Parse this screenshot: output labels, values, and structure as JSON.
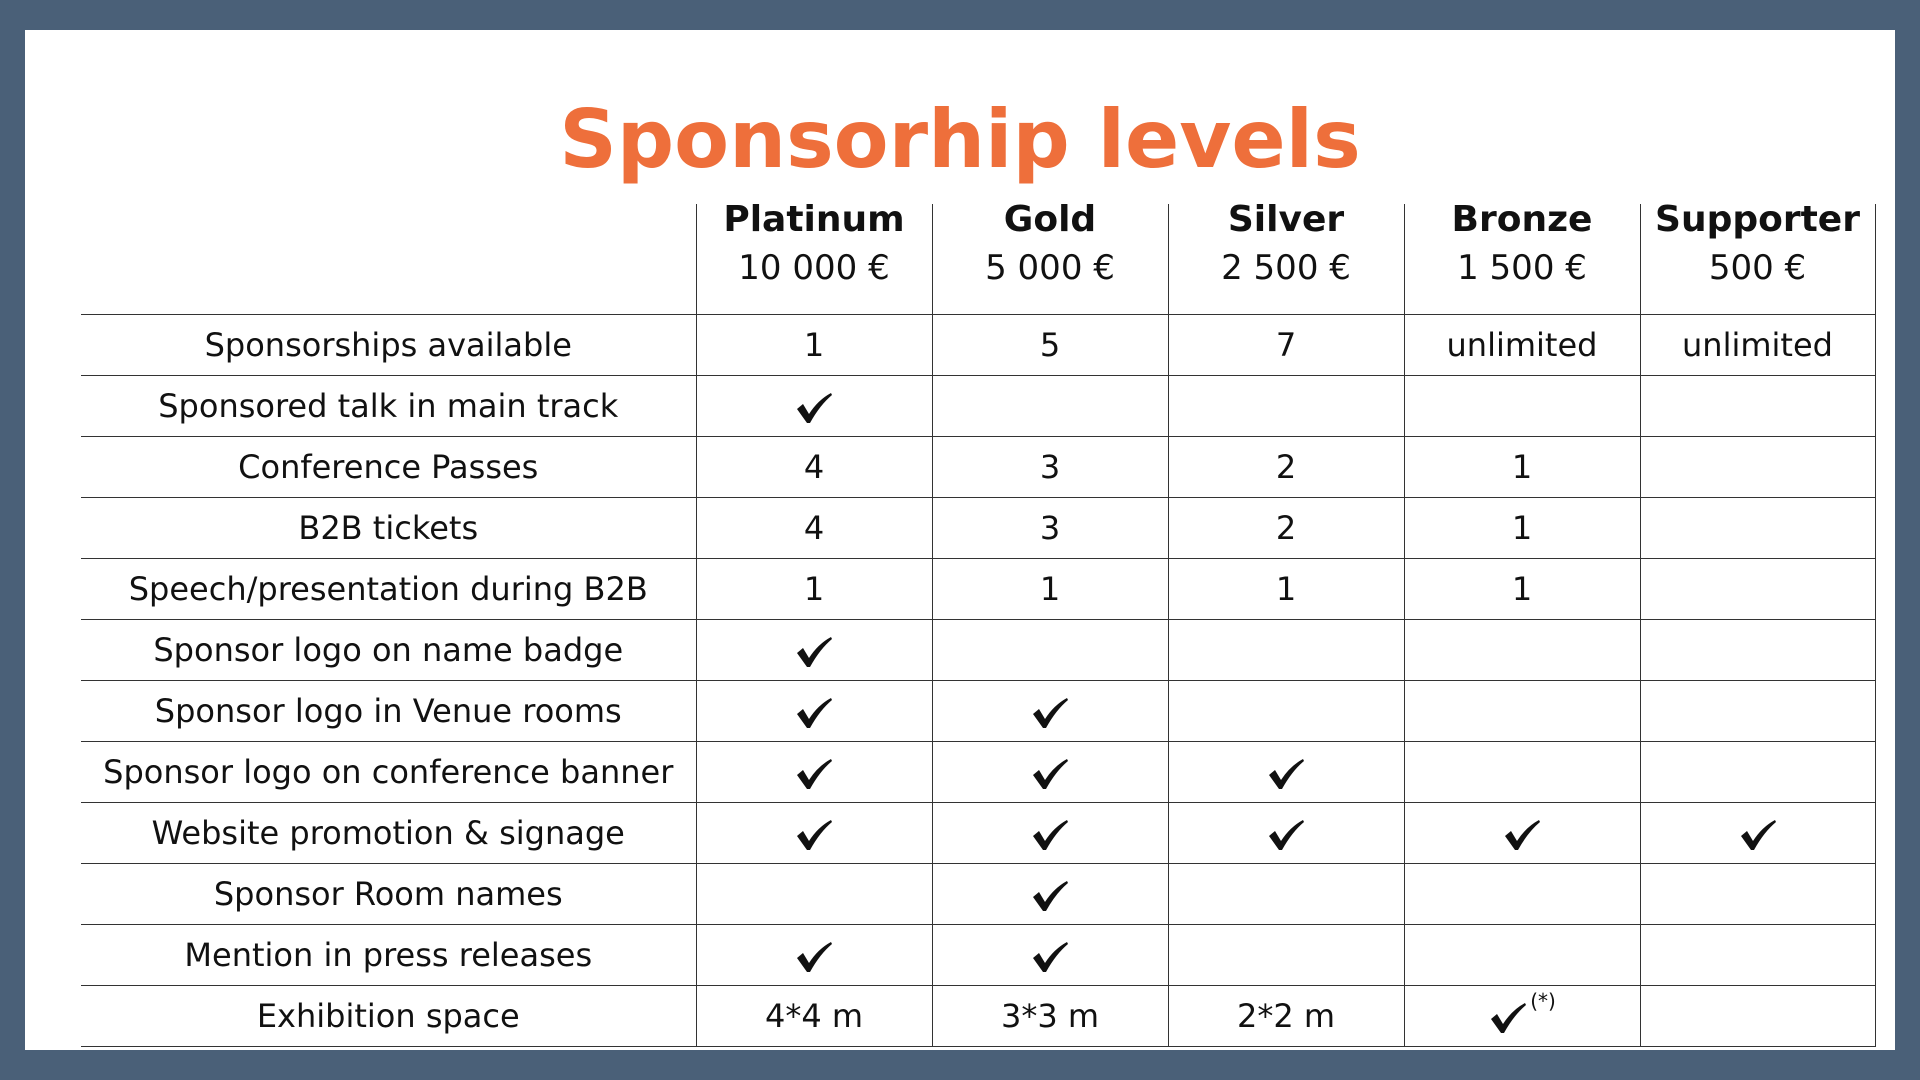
{
  "title": "Sponsorhip levels",
  "levels": [
    {
      "name": "Platinum",
      "price": "10 000 €"
    },
    {
      "name": "Gold",
      "price": "5 000 €"
    },
    {
      "name": "Silver",
      "price": "2 500 €"
    },
    {
      "name": "Bronze",
      "price": "1 500 €"
    },
    {
      "name": "Supporter",
      "price": "500 €"
    }
  ],
  "rows": [
    {
      "feature": "Sponsorships available",
      "values": [
        "1",
        "5",
        "7",
        "unlimited",
        "unlimited"
      ]
    },
    {
      "feature": "Sponsored talk in main track",
      "values": [
        "check",
        "",
        "",
        "",
        ""
      ]
    },
    {
      "feature": "Conference Passes",
      "values": [
        "4",
        "3",
        "2",
        "1",
        ""
      ]
    },
    {
      "feature": "B2B tickets",
      "values": [
        "4",
        "3",
        "2",
        "1",
        ""
      ]
    },
    {
      "feature": "Speech/presentation during B2B",
      "values": [
        "1",
        "1",
        "1",
        "1",
        ""
      ]
    },
    {
      "feature": "Sponsor logo on name badge",
      "values": [
        "check",
        "",
        "",
        "",
        ""
      ]
    },
    {
      "feature": "Sponsor logo in Venue rooms",
      "values": [
        "check",
        "check",
        "",
        "",
        ""
      ]
    },
    {
      "feature": "Sponsor logo on conference banner",
      "values": [
        "check",
        "check",
        "check",
        "",
        ""
      ]
    },
    {
      "feature": "Website promotion & signage",
      "values": [
        "check",
        "check",
        "check",
        "check",
        "check"
      ]
    },
    {
      "feature": "Sponsor Room names",
      "values": [
        "",
        "check",
        "",
        "",
        ""
      ]
    },
    {
      "feature": "Mention in press releases",
      "values": [
        "check",
        "check",
        "",
        "",
        ""
      ]
    },
    {
      "feature": "Exhibition space",
      "values": [
        "4*4 m",
        "3*3 m",
        "2*2 m",
        "check",
        ""
      ],
      "notes": [
        "",
        "",
        "",
        "(*)",
        ""
      ]
    }
  ],
  "icons": {
    "check": "checkmark-icon"
  },
  "colors": {
    "title": "#ee6f3b",
    "frame": "#4a6078",
    "background": "#ffffff"
  }
}
